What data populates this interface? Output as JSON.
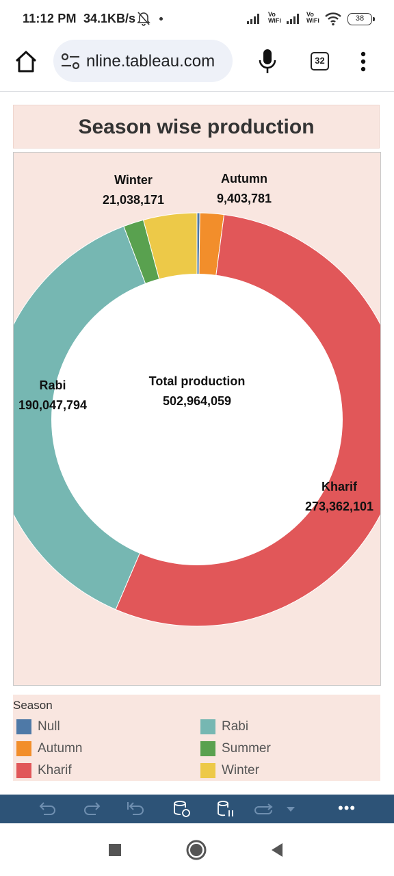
{
  "status_bar": {
    "time": "11:12 PM",
    "data_rate": "34.1KB/s",
    "vowifi_label": "Vo\nWiFi",
    "battery": "38"
  },
  "browser": {
    "url": "nline.tableau.com",
    "tab_count": "32"
  },
  "dashboard": {
    "title": "Season wise production",
    "center_label_title": "Total production",
    "center_label_value": "502,964,059"
  },
  "chart_data": {
    "type": "pie",
    "title": "Season wise production",
    "donut": true,
    "center_text": [
      "Total production",
      "502,964,059"
    ],
    "total": 502964059,
    "slices": [
      {
        "name": "Null",
        "value": 1111000,
        "color": "#4e79a7",
        "label": null
      },
      {
        "name": "Autumn",
        "value": 9403781,
        "color": "#f28e2b",
        "label": "Autumn",
        "value_label": "9,403,781"
      },
      {
        "name": "Kharif",
        "value": 273362101,
        "color": "#e15759",
        "label": "Kharif",
        "value_label": "273,362,101"
      },
      {
        "name": "Rabi",
        "value": 190047794,
        "color": "#76b7b2",
        "label": "Rabi",
        "value_label": "190,047,794"
      },
      {
        "name": "Summer",
        "value": 8001212,
        "color": "#59a14f",
        "label": null
      },
      {
        "name": "Winter",
        "value": 21038171,
        "color": "#edc948",
        "label": "Winter",
        "value_label": "21,038,171"
      }
    ],
    "legend_position": "bottom",
    "background": "#f9e6e0"
  },
  "legend": {
    "title": "Season",
    "items": [
      {
        "label": "Null",
        "color": "#4e79a7"
      },
      {
        "label": "Rabi",
        "color": "#76b7b2"
      },
      {
        "label": "Autumn",
        "color": "#f28e2b"
      },
      {
        "label": "Summer",
        "color": "#59a14f"
      },
      {
        "label": "Kharif",
        "color": "#e15759"
      },
      {
        "label": "Winter",
        "color": "#edc948"
      }
    ]
  },
  "toolbar": {
    "more_label": "•••"
  }
}
